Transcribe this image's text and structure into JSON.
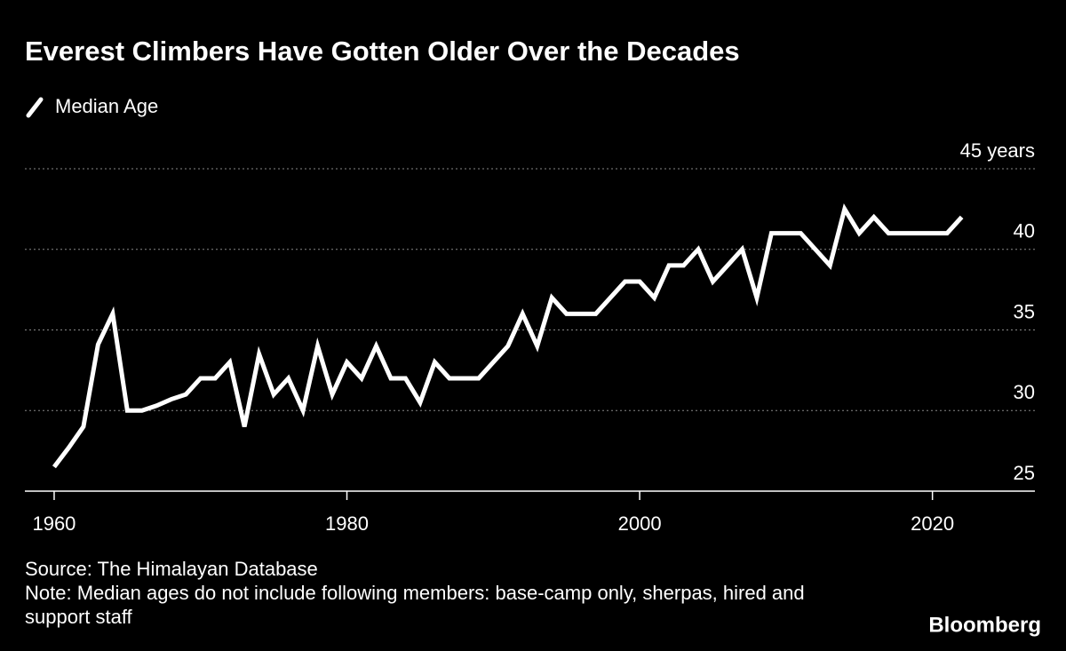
{
  "chart_data": {
    "type": "line",
    "title": "Everest Climbers Have Gotten Older Over the Decades",
    "x": [
      1960,
      1961,
      1962,
      1963,
      1964,
      1965,
      1966,
      1967,
      1968,
      1969,
      1970,
      1971,
      1972,
      1973,
      1974,
      1975,
      1976,
      1977,
      1978,
      1979,
      1980,
      1981,
      1982,
      1983,
      1984,
      1985,
      1986,
      1987,
      1988,
      1989,
      1990,
      1991,
      1992,
      1993,
      1994,
      1995,
      1996,
      1997,
      1998,
      1999,
      2000,
      2001,
      2002,
      2003,
      2004,
      2005,
      2006,
      2007,
      2008,
      2009,
      2010,
      2011,
      2012,
      2013,
      2014,
      2015,
      2016,
      2017,
      2018,
      2019,
      2020,
      2021,
      2022
    ],
    "series": [
      {
        "name": "Median Age",
        "color": "#ffffff",
        "values": [
          26.5,
          27.7,
          29,
          34.1,
          36,
          30,
          30,
          30.3,
          30.7,
          31,
          32,
          32,
          33,
          29,
          33.5,
          31,
          32,
          30,
          34,
          31,
          33,
          32,
          34,
          32,
          32,
          30.5,
          33,
          32,
          32,
          32,
          33,
          34,
          36,
          34,
          37,
          36,
          36,
          36,
          37,
          38,
          38,
          37,
          39,
          39,
          40,
          38,
          39,
          40,
          37,
          41,
          41,
          41,
          40,
          39,
          42.5,
          41,
          42,
          41,
          41,
          41,
          41,
          41,
          42
        ]
      }
    ],
    "xlim": [
      1958,
      2027
    ],
    "xticks": [
      1960,
      1980,
      2000,
      2020
    ],
    "ylim": [
      25,
      45
    ],
    "yticks": [
      25,
      30,
      35,
      40,
      {
        "value": 45,
        "label": "45 years"
      }
    ],
    "grid": true,
    "source": "Source: The Himalayan Database",
    "note": "Note: Median ages do not include following members: base-camp only, sherpas, hired and support staff",
    "brand": "Bloomberg"
  }
}
